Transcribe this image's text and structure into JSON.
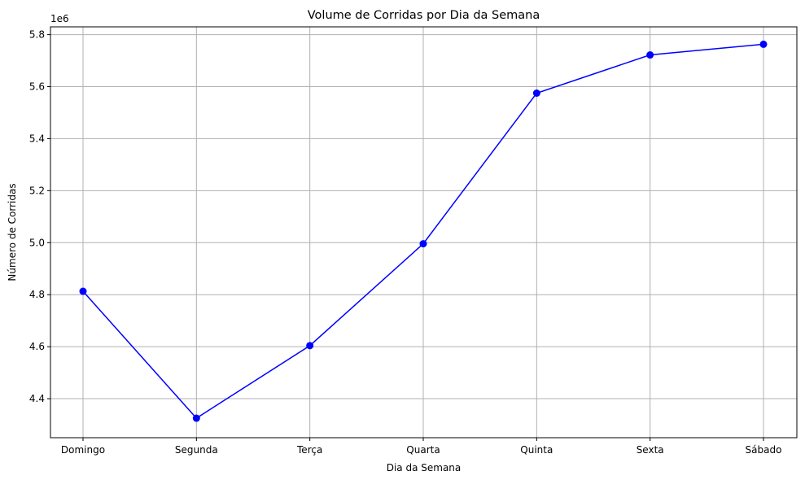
{
  "chart_data": {
    "type": "line",
    "title": "Volume de Corridas por Dia da Semana",
    "xlabel": "Dia da Semana",
    "ylabel": "Número de Corridas",
    "y_offset_label": "1e6",
    "categories": [
      "Domingo",
      "Segunda",
      "Terça",
      "Quarta",
      "Quinta",
      "Sexta",
      "Sábado"
    ],
    "series": [
      {
        "values": [
          4.813,
          4.325,
          4.604,
          4.996,
          5.575,
          5.722,
          5.763
        ],
        "color": "#0000ff",
        "marker": "circle"
      }
    ],
    "y_scale": "×1e6",
    "ylim": [
      4.25,
      5.83
    ],
    "yticks": [
      "4.4",
      "4.6",
      "4.8",
      "5.0",
      "5.2",
      "5.4",
      "5.6",
      "5.8"
    ],
    "grid": true,
    "legend": "none"
  },
  "colors": {
    "grid": "#b0b0b0",
    "axis": "#000000",
    "line": "#0000ff"
  }
}
